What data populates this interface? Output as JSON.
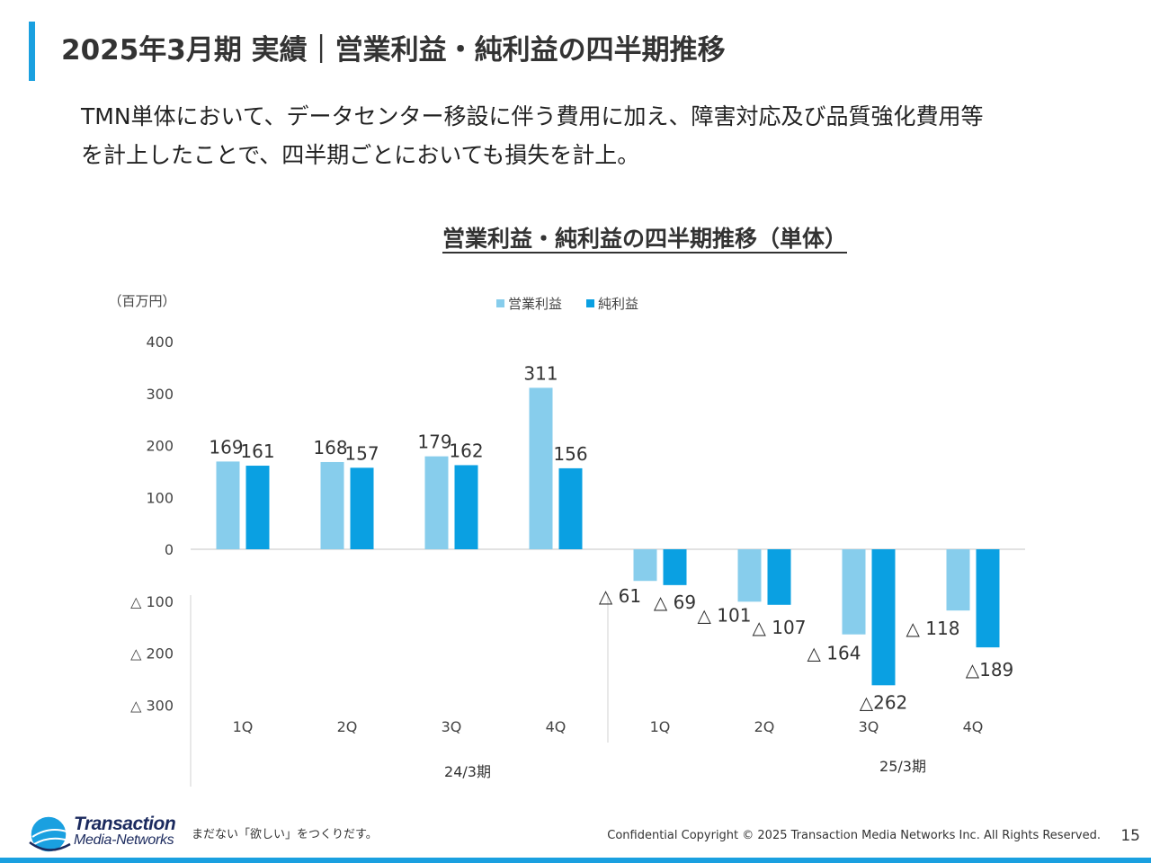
{
  "header": {
    "title": "2025年3月期 実績｜営業利益・純利益の四半期推移",
    "accent_color": "#1aa0e0"
  },
  "intro": {
    "line1": "TMN単体において、データセンター移設に伴う費用に加え、障害対応及び品質強化費用等",
    "line2": "を計上したことで、四半期ごとにおいても損失を計上。"
  },
  "chart_data": {
    "type": "bar",
    "title": "営業利益・純利益の四半期推移（単体）",
    "unit_label": "（百万円）",
    "categories": [
      "1Q",
      "2Q",
      "3Q",
      "4Q",
      "1Q",
      "2Q",
      "3Q",
      "4Q"
    ],
    "groups": [
      {
        "label": "24/3期",
        "categories": [
          "1Q",
          "2Q",
          "3Q",
          "4Q"
        ]
      },
      {
        "label": "25/3期",
        "categories": [
          "1Q",
          "2Q",
          "3Q",
          "4Q"
        ]
      }
    ],
    "series": [
      {
        "name": "営業利益",
        "color": "#87cdec",
        "values": [
          169,
          168,
          179,
          311,
          -61,
          -101,
          -164,
          -118
        ],
        "labels": [
          "169",
          "168",
          "179",
          "311",
          "△ 61",
          "△ 101",
          "△ 164",
          "△ 118"
        ]
      },
      {
        "name": "純利益",
        "color": "#0aa0e2",
        "values": [
          161,
          157,
          162,
          156,
          -69,
          -107,
          -262,
          -189
        ],
        "labels": [
          "161",
          "157",
          "162",
          "156",
          "△ 69",
          "△ 107",
          "△262",
          "△189"
        ]
      }
    ],
    "ylim": [
      -300,
      400
    ],
    "yticks": [
      400,
      300,
      200,
      100,
      0,
      -100,
      -200,
      -300
    ],
    "ytick_labels": [
      "400",
      "300",
      "200",
      "100",
      "0",
      "△ 100",
      "△ 200",
      "△ 300"
    ],
    "legend_position": "top"
  },
  "footer": {
    "logo_line1": "Transaction",
    "logo_line2": "Media-Networks",
    "tagline": "まだない「欲しい」をつくりだす。",
    "copyright": "Confidential  Copyright © 2025 Transaction Media Networks Inc. All Rights Reserved.",
    "page_number": "15"
  }
}
